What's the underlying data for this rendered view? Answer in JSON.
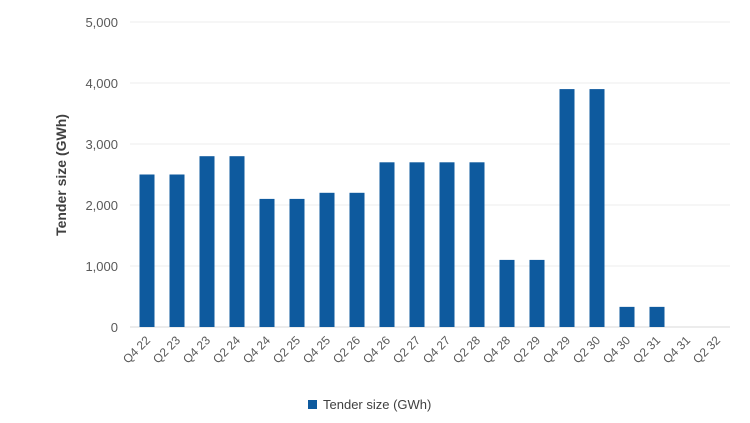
{
  "chart_data": {
    "type": "bar",
    "categories": [
      "Q4 22",
      "Q2 23",
      "Q4 23",
      "Q2 24",
      "Q4 24",
      "Q2 25",
      "Q4 25",
      "Q2 26",
      "Q4 26",
      "Q2 27",
      "Q4 27",
      "Q2 28",
      "Q4 28",
      "Q2 29",
      "Q4 29",
      "Q2 30",
      "Q4 30",
      "Q2 31",
      "Q4 31",
      "Q2 32"
    ],
    "series": [
      {
        "name": "Tender size (GWh)",
        "color": "#0e5a9e",
        "values": [
          2500,
          2500,
          2800,
          2800,
          2100,
          2100,
          2200,
          2200,
          2700,
          2700,
          2700,
          2700,
          1100,
          1100,
          3900,
          3900,
          330,
          330,
          0,
          0
        ]
      }
    ],
    "ylabel": "Tender size (GWh)",
    "xlabel": "",
    "ylim": [
      0,
      5000
    ],
    "yticks": [
      0,
      1000,
      2000,
      3000,
      4000,
      5000
    ],
    "ytick_labels": [
      "0",
      "1,000",
      "2,000",
      "3,000",
      "4,000",
      "5,000"
    ],
    "grid": true,
    "legend_position": "bottom"
  }
}
